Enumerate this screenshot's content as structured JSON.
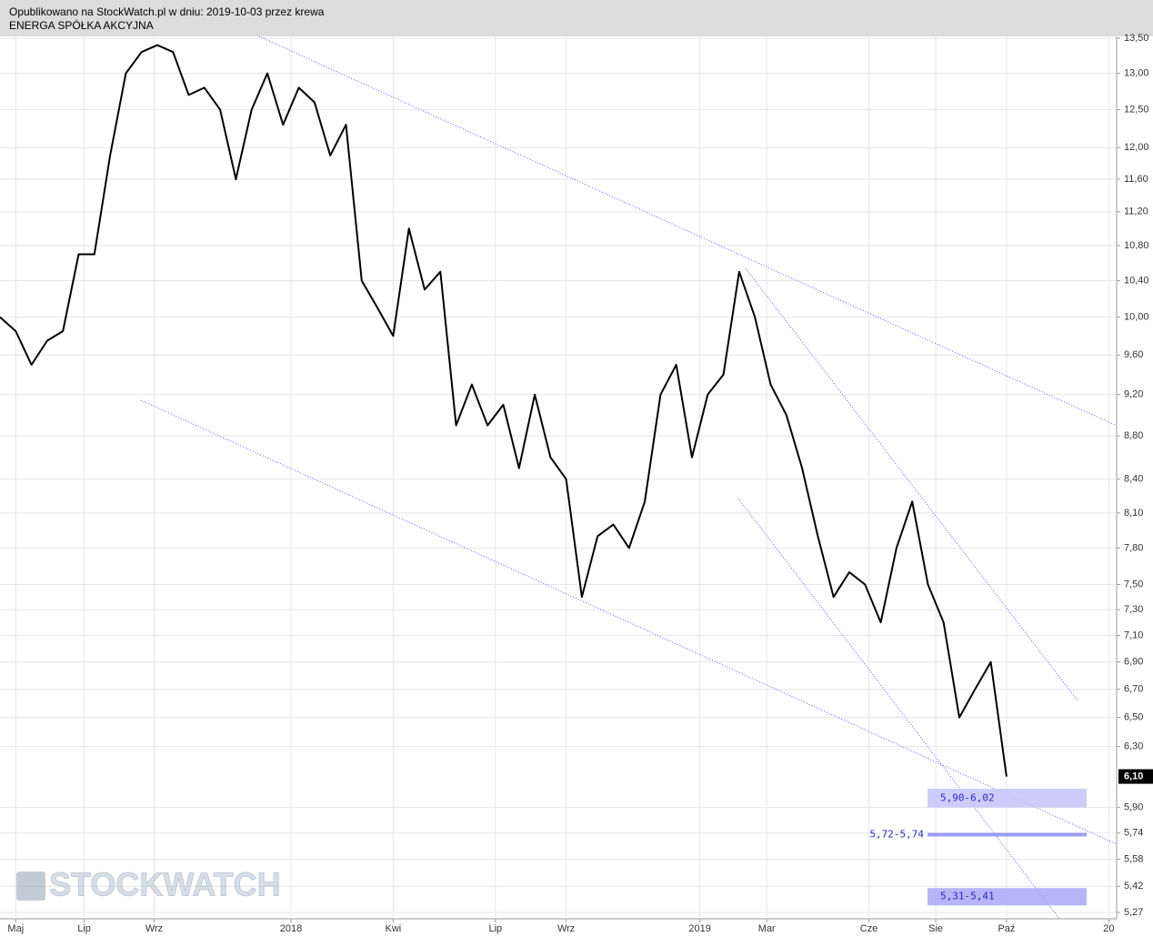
{
  "header": {
    "line1": "Opublikowano na StockWatch.pl w dniu: 2019-10-03 przez krewa",
    "line2": "ENERGA SPÓŁKA AKCYJNA"
  },
  "watermark": "STOCKWATCH",
  "chart_data": {
    "type": "line",
    "log_scale": true,
    "grid": true,
    "color": "#000000",
    "x": [
      -2,
      0,
      2,
      4,
      6,
      8,
      10,
      12,
      14,
      16,
      18,
      20,
      22,
      24,
      26,
      28,
      30,
      32,
      34,
      36,
      38,
      40,
      42,
      44,
      46,
      48,
      50,
      52,
      54,
      56,
      58,
      60,
      62,
      64,
      66,
      68,
      70,
      72,
      74,
      76,
      78,
      80,
      82,
      84,
      86,
      88,
      90,
      92,
      94,
      96,
      98,
      100,
      102,
      104,
      106,
      108,
      110,
      112,
      114,
      116,
      118,
      120,
      122,
      124,
      126
    ],
    "values": [
      10.0,
      9.85,
      9.5,
      9.75,
      9.85,
      10.7,
      10.7,
      11.9,
      13.0,
      13.3,
      13.4,
      13.3,
      12.7,
      12.8,
      12.5,
      11.6,
      12.5,
      13.0,
      12.3,
      12.8,
      12.6,
      11.9,
      12.3,
      10.4,
      10.1,
      9.8,
      11.0,
      10.3,
      10.5,
      8.9,
      9.3,
      8.9,
      9.1,
      8.5,
      9.2,
      8.6,
      8.4,
      7.4,
      7.9,
      8.0,
      7.8,
      8.2,
      9.2,
      9.5,
      8.6,
      9.2,
      9.4,
      10.5,
      10.0,
      9.3,
      9.0,
      8.5,
      7.9,
      7.4,
      7.6,
      7.5,
      7.2,
      7.8,
      8.2,
      7.5,
      7.2,
      6.5,
      6.7,
      6.9,
      6.1
    ],
    "last_price": {
      "value": 6.1,
      "label": "6,10"
    },
    "xlim": [
      -2,
      140
    ],
    "xticks": [
      {
        "value": 0,
        "label": "Maj"
      },
      {
        "value": 8.7,
        "label": "Lip"
      },
      {
        "value": 17.6,
        "label": "Wrz"
      },
      {
        "value": 35,
        "label": "2018"
      },
      {
        "value": 48,
        "label": "Kwi"
      },
      {
        "value": 61,
        "label": "Lip"
      },
      {
        "value": 70,
        "label": "Wrz"
      },
      {
        "value": 87,
        "label": "2019"
      },
      {
        "value": 95.5,
        "label": "Mar"
      },
      {
        "value": 108.5,
        "label": "Cze"
      },
      {
        "value": 117,
        "label": "Sie"
      },
      {
        "value": 126,
        "label": "Paź"
      },
      {
        "value": 139,
        "label": "20"
      }
    ],
    "ylim": [
      5.27,
      13.5
    ],
    "yticks": [
      {
        "value": 13.5,
        "label": "13,50"
      },
      {
        "value": 13.0,
        "label": "13,00"
      },
      {
        "value": 12.5,
        "label": "12,50"
      },
      {
        "value": 12.0,
        "label": "12,00"
      },
      {
        "value": 11.6,
        "label": "11,60"
      },
      {
        "value": 11.2,
        "label": "11,20"
      },
      {
        "value": 10.8,
        "label": "10,80"
      },
      {
        "value": 10.4,
        "label": "10,40"
      },
      {
        "value": 10.0,
        "label": "10,00"
      },
      {
        "value": 9.6,
        "label": "9,60"
      },
      {
        "value": 9.2,
        "label": "9,20"
      },
      {
        "value": 8.8,
        "label": "8,80"
      },
      {
        "value": 8.4,
        "label": "8,40"
      },
      {
        "value": 8.1,
        "label": "8,10"
      },
      {
        "value": 7.8,
        "label": "7,80"
      },
      {
        "value": 7.5,
        "label": "7,50"
      },
      {
        "value": 7.3,
        "label": "7,30"
      },
      {
        "value": 7.1,
        "label": "7,10"
      },
      {
        "value": 6.9,
        "label": "6,90"
      },
      {
        "value": 6.7,
        "label": "6,70"
      },
      {
        "value": 6.5,
        "label": "6,50"
      },
      {
        "value": 6.3,
        "label": "6,30"
      },
      {
        "value": 5.9,
        "label": "5,90"
      },
      {
        "value": 5.74,
        "label": "5,74"
      },
      {
        "value": 5.58,
        "label": "5,58"
      },
      {
        "value": 5.42,
        "label": "5,42"
      },
      {
        "value": 5.27,
        "label": "5,27"
      }
    ],
    "zones": [
      {
        "from": 5.9,
        "to": 6.02,
        "label": "5,90-6,02",
        "color": "#c4c4fa"
      },
      {
        "from": 5.72,
        "to": 5.74,
        "label": "5,72-5,74",
        "color": "#8c8cf0"
      },
      {
        "from": 5.31,
        "to": 5.41,
        "label": "5,31-5,41",
        "color": "#a8a8f6"
      }
    ]
  }
}
